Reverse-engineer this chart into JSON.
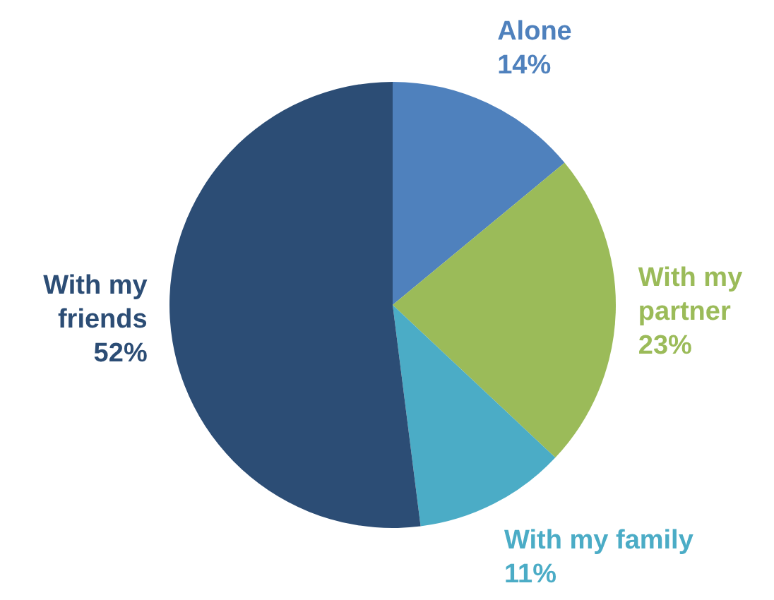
{
  "chart_data": {
    "type": "pie",
    "categories": [
      "Alone",
      "With my partner",
      "With my family",
      "With my friends"
    ],
    "values": [
      14,
      23,
      11,
      52
    ],
    "colors": [
      "#4f81bd",
      "#9bbb59",
      "#4bacc6",
      "#2c4d75"
    ],
    "value_labels": [
      "14%",
      "23%",
      "11%",
      "52%"
    ],
    "legend": false
  }
}
